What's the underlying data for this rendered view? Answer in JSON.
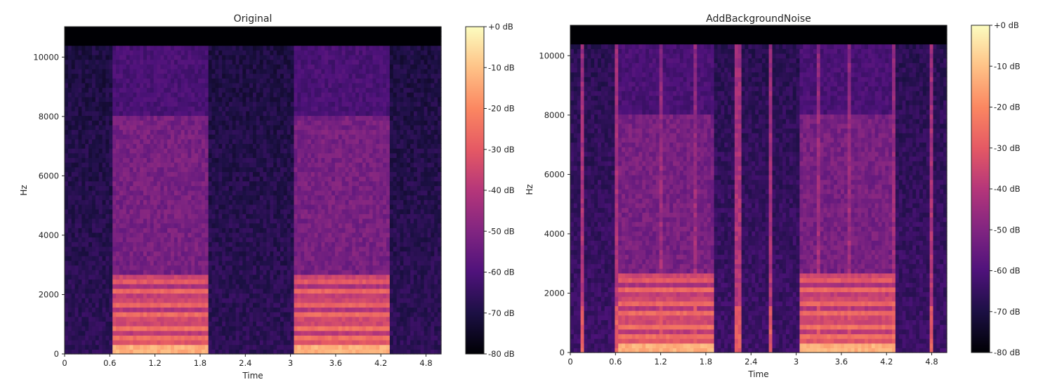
{
  "chart_data": [
    {
      "type": "heatmap",
      "title": "Original",
      "xlabel": "Time",
      "ylabel": "Hz",
      "xlim": [
        0,
        5.0
      ],
      "ylim": [
        0,
        11025
      ],
      "x_ticks": [
        "0",
        "0.6",
        "1.2",
        "1.8",
        "2.4",
        "3",
        "3.6",
        "4.2",
        "4.8"
      ],
      "y_ticks": [
        "0",
        "2000",
        "4000",
        "6000",
        "8000",
        "10000"
      ],
      "colorbar": {
        "ticks": [
          "+0 dB",
          "-10 dB",
          "-20 dB",
          "-30 dB",
          "-40 dB",
          "-50 dB",
          "-60 dB",
          "-70 dB",
          "-80 dB"
        ],
        "range_db": [
          -80,
          0
        ],
        "colormap": "magma"
      },
      "speech_segments_s": [
        [
          0.65,
          1.93
        ],
        [
          3.05,
          4.33
        ]
      ],
      "click_times_s": []
    },
    {
      "type": "heatmap",
      "title": "AddBackgroundNoise",
      "xlabel": "Time",
      "ylabel": "Hz",
      "xlim": [
        0,
        5.0
      ],
      "ylim": [
        0,
        11025
      ],
      "x_ticks": [
        "0",
        "0.6",
        "1.2",
        "1.8",
        "2.4",
        "3",
        "3.6",
        "4.2",
        "4.8"
      ],
      "y_ticks": [
        "0",
        "2000",
        "4000",
        "6000",
        "8000",
        "10000"
      ],
      "colorbar": {
        "ticks": [
          "+0 dB",
          "-10 dB",
          "-20 dB",
          "-30 dB",
          "-40 dB",
          "-50 dB",
          "-60 dB",
          "-70 dB",
          "-80 dB"
        ],
        "range_db": [
          -80,
          0
        ],
        "colormap": "magma"
      },
      "speech_segments_s": [
        [
          0.65,
          1.93
        ],
        [
          3.05,
          4.33
        ]
      ],
      "click_times_s": [
        0.16,
        0.6,
        1.2,
        1.65,
        2.23,
        2.67,
        3.29,
        3.7,
        4.31,
        4.8
      ]
    }
  ],
  "colors": {
    "background": "#000004",
    "magma_stops": [
      "#000004",
      "#1c1044",
      "#4f127b",
      "#812581",
      "#b5367a",
      "#e55964",
      "#fb8761",
      "#fec287",
      "#fcfdbf"
    ]
  }
}
